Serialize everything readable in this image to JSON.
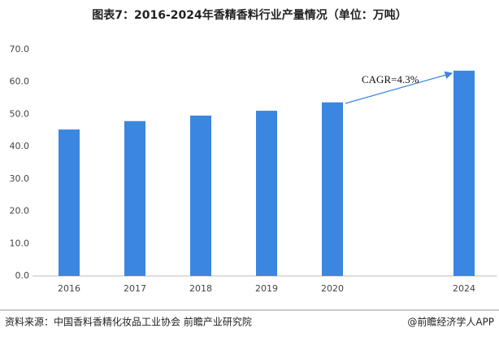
{
  "chart_data": {
    "type": "bar",
    "title": "图表7：2016-2024年香精香料行业产量情况（单位：万吨）",
    "categories": [
      "2016",
      "2017",
      "2018",
      "2019",
      "2020",
      null,
      "2024"
    ],
    "values": [
      45.3,
      47.9,
      49.6,
      51.1,
      53.7,
      null,
      63.5
    ],
    "color": "#3a86e0",
    "ylim": [
      0,
      70
    ],
    "yticks": [
      {
        "value": 0,
        "label": "0.0"
      },
      {
        "value": 10,
        "label": "10.0"
      },
      {
        "value": 20,
        "label": "20.0"
      },
      {
        "value": 30,
        "label": "30.0"
      },
      {
        "value": 40,
        "label": "40.0"
      },
      {
        "value": 50,
        "label": "50.0"
      },
      {
        "value": 60,
        "label": "60.0"
      },
      {
        "value": 70,
        "label": "70.0"
      }
    ],
    "grid": false,
    "annotation": "CAGR=4.3%",
    "source": "资料来源：中国香料香精化妆品工业协会 前瞻产业研究院",
    "credit": "@前瞻经济学人APP"
  }
}
